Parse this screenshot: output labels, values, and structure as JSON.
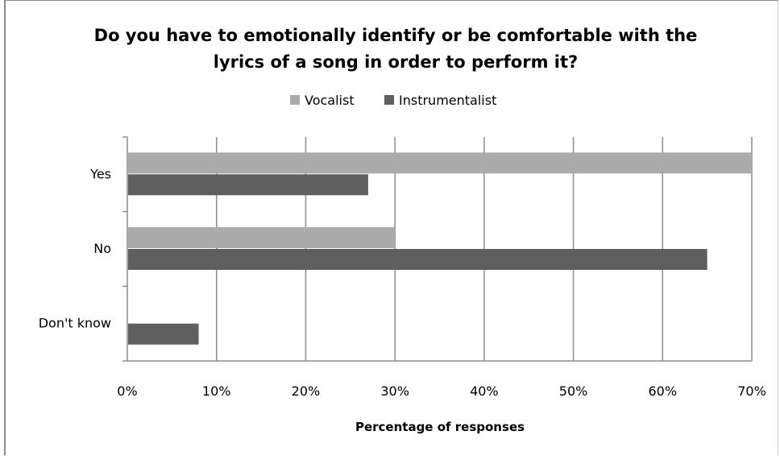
{
  "chart_data": {
    "type": "bar",
    "orientation": "horizontal",
    "title_line1": "Do you have to emotionally identify or be comfortable with the",
    "title_line2": "lyrics of a song in order to perform it?",
    "xlabel": "Percentage of responses",
    "ylabel": "",
    "categories": [
      "Yes",
      "No",
      "Don't know"
    ],
    "series": [
      {
        "name": "Vocalist",
        "color": "#ababab",
        "values": [
          70,
          30,
          0
        ]
      },
      {
        "name": "Instrumentalist",
        "color": "#5f5f5f",
        "values": [
          27,
          65,
          8
        ]
      }
    ],
    "xlim": [
      0,
      70
    ],
    "xticks": [
      "0%",
      "10%",
      "20%",
      "30%",
      "40%",
      "50%",
      "60%",
      "70%"
    ],
    "grid": true,
    "legend_position": "top"
  }
}
